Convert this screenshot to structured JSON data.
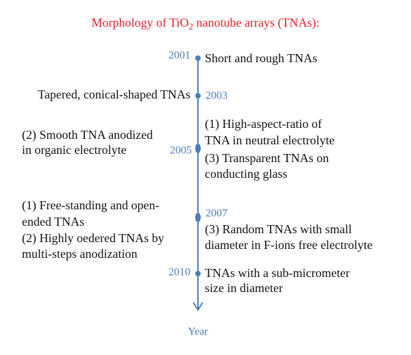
{
  "title": {
    "parts": [
      "Morphology of TiO",
      "2",
      " nanotube arrays (TNAs):"
    ]
  },
  "events": [
    {
      "year": "2001",
      "left": [],
      "right": [
        "Short and rough TNAs"
      ]
    },
    {
      "year": "2003",
      "left": [
        "Tapered, conical-shaped TNAs"
      ],
      "right": []
    },
    {
      "year": "2005",
      "left": [
        "(2) Smooth TNA anodized",
        "in organic electrolyte"
      ],
      "right": [
        "(1) High-aspect-ratio of",
        "TNA in neutral electrolyte",
        "(3) Transparent TNAs on",
        "conducting glass"
      ]
    },
    {
      "year": "2007",
      "left": [
        "(1) Free-standing and open-",
        "ended TNAs",
        "(2) Highly oedered TNAs by",
        "multi-steps anodization"
      ],
      "right": [
        "(3) Random TNAs with small",
        "diameter in F-ions free electrolyte"
      ]
    },
    {
      "year": "2010",
      "left": [],
      "right": [
        "TNAs with a sub-micrometer",
        "size in diameter"
      ]
    }
  ],
  "axis_label": "Year"
}
